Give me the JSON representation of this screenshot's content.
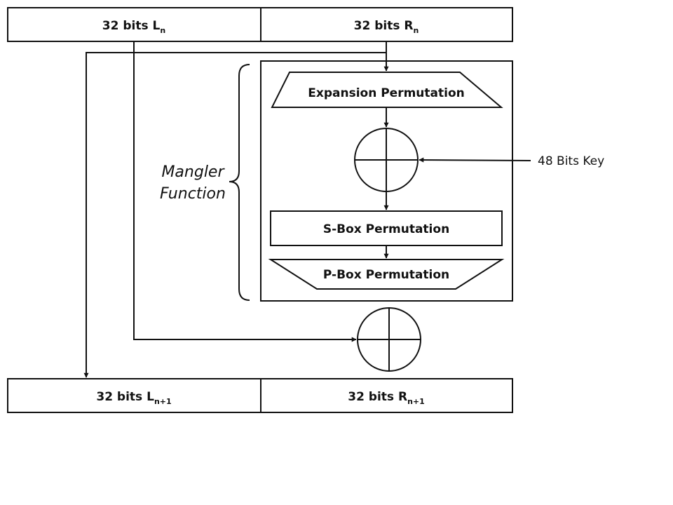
{
  "registers": {
    "top_left": {
      "main": "32 bits L",
      "sub": "n"
    },
    "top_right": {
      "main": "32 bits R",
      "sub": "n"
    },
    "bottom_left": {
      "main": "32 bits L",
      "sub": "n+1"
    },
    "bottom_right": {
      "main": "32 bits R",
      "sub": "n+1"
    }
  },
  "mangler": {
    "title_line1": "Mangler",
    "title_line2": "Function",
    "steps": {
      "expansion": "Expansion Permutation",
      "sbox": "S-Box Permutation",
      "pbox": "P-Box Permutation"
    }
  },
  "key": {
    "label": "48 Bits Key"
  },
  "colors": {
    "stroke": "#111111",
    "background": "#ffffff"
  }
}
